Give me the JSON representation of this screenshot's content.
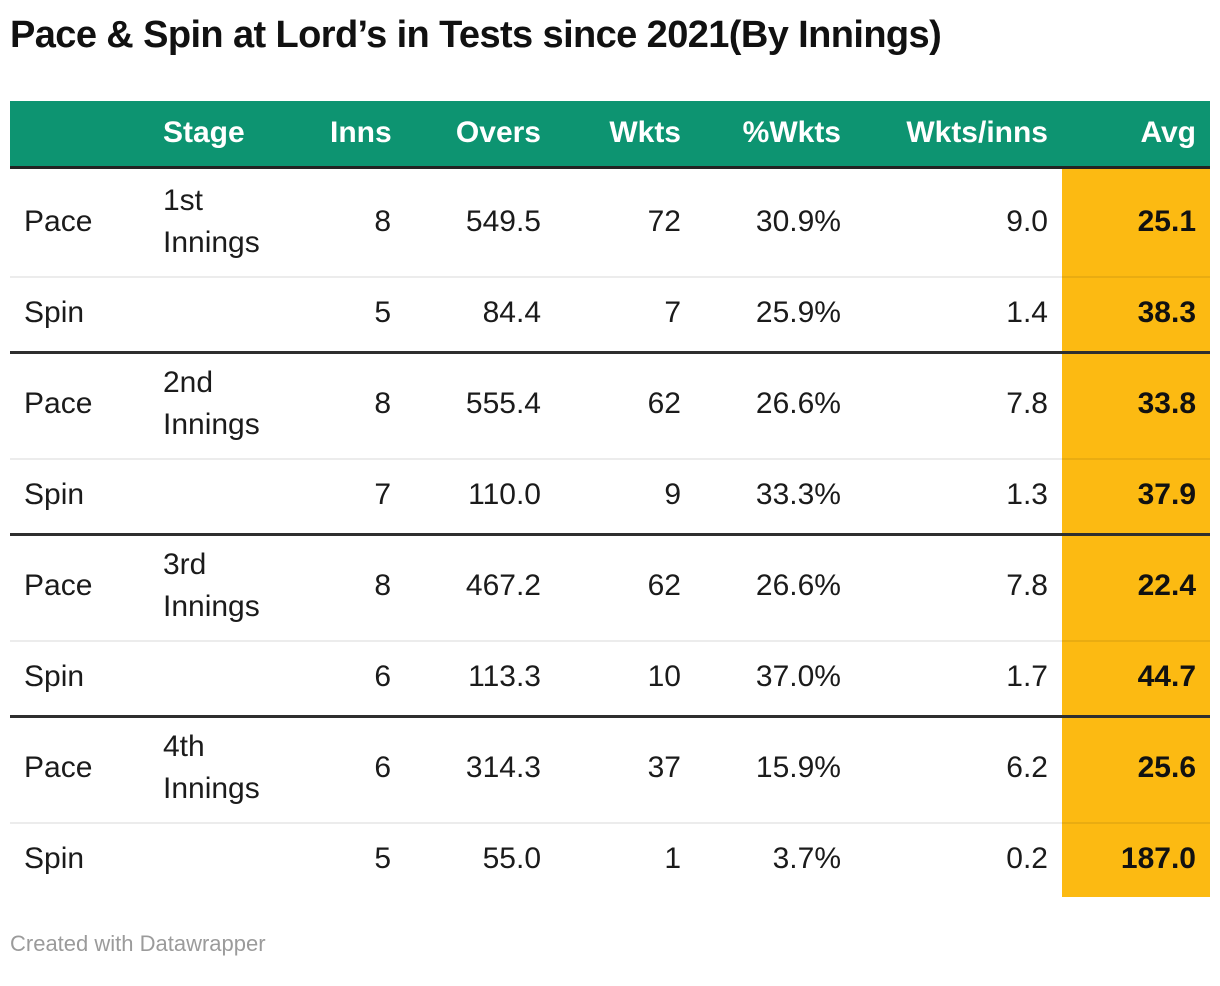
{
  "title": "Pace & Spin at Lord’s in Tests since 2021(By Innings)",
  "footer": {
    "credit": "Created with Datawrapper"
  },
  "colors": {
    "header_bg": "#0D9471",
    "header_text": "#FFFFFF",
    "highlight_bg": "#FCBA12",
    "section_border": "#2E2E2E",
    "body_text": "#1B1B1B"
  },
  "chart_data": {
    "type": "table",
    "title": "Pace & Spin at Lord’s in Tests since 2021(By Innings)",
    "columns": [
      "",
      "Stage",
      "Inns",
      "Overs",
      "Wkts",
      "%Wkts",
      "Wkts/inns",
      "Avg"
    ],
    "highlight_column": "Avg",
    "rows": [
      {
        "bowling": "Pace",
        "stage": "1st Innings",
        "inns": "8",
        "overs": "549.5",
        "wkts": "72",
        "wkts_pct": "30.9%",
        "wkts_per_inns": "9.0",
        "avg": "25.1"
      },
      {
        "bowling": "Spin",
        "stage": "",
        "inns": "5",
        "overs": "84.4",
        "wkts": "7",
        "wkts_pct": "25.9%",
        "wkts_per_inns": "1.4",
        "avg": "38.3"
      },
      {
        "bowling": "Pace",
        "stage": "2nd Innings",
        "inns": "8",
        "overs": "555.4",
        "wkts": "62",
        "wkts_pct": "26.6%",
        "wkts_per_inns": "7.8",
        "avg": "33.8"
      },
      {
        "bowling": "Spin",
        "stage": "",
        "inns": "7",
        "overs": "110.0",
        "wkts": "9",
        "wkts_pct": "33.3%",
        "wkts_per_inns": "1.3",
        "avg": "37.9"
      },
      {
        "bowling": "Pace",
        "stage": "3rd Innings",
        "inns": "8",
        "overs": "467.2",
        "wkts": "62",
        "wkts_pct": "26.6%",
        "wkts_per_inns": "7.8",
        "avg": "22.4"
      },
      {
        "bowling": "Spin",
        "stage": "",
        "inns": "6",
        "overs": "113.3",
        "wkts": "10",
        "wkts_pct": "37.0%",
        "wkts_per_inns": "1.7",
        "avg": "44.7"
      },
      {
        "bowling": "Pace",
        "stage": "4th Innings",
        "inns": "6",
        "overs": "314.3",
        "wkts": "37",
        "wkts_pct": "15.9%",
        "wkts_per_inns": "6.2",
        "avg": "25.6"
      },
      {
        "bowling": "Spin",
        "stage": "",
        "inns": "5",
        "overs": "55.0",
        "wkts": "1",
        "wkts_pct": "3.7%",
        "wkts_per_inns": "0.2",
        "avg": "187.0"
      }
    ]
  }
}
